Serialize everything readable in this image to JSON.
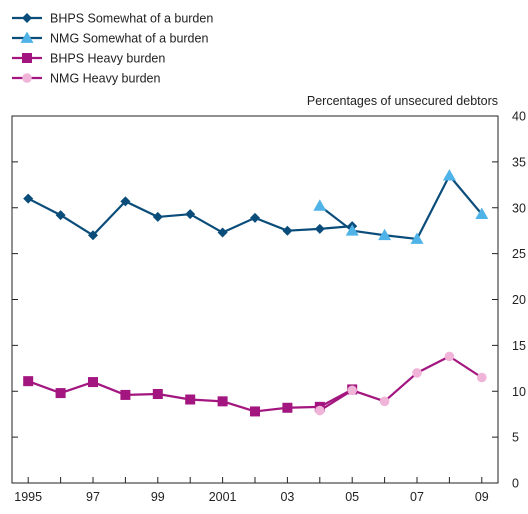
{
  "chart_data": {
    "type": "line",
    "ylabel": "Percentages of unsecured debtors",
    "ylim": [
      0,
      40
    ],
    "xlim": [
      1994.5,
      2009.5
    ],
    "y_ticks": [
      0,
      5,
      10,
      15,
      20,
      25,
      30,
      35,
      40
    ],
    "y_axis_side": "right",
    "x_tick_labels": [
      {
        "x": 1995,
        "label": "1995"
      },
      {
        "x": 1997,
        "label": "97"
      },
      {
        "x": 1999,
        "label": "99"
      },
      {
        "x": 2001,
        "label": "2001"
      },
      {
        "x": 2003,
        "label": "03"
      },
      {
        "x": 2005,
        "label": "05"
      },
      {
        "x": 2007,
        "label": "07"
      },
      {
        "x": 2009,
        "label": "09"
      }
    ],
    "grid": false,
    "legend_position": "top-left",
    "series": [
      {
        "name": "BHPS Somewhat of a burden",
        "color": "#0a4d7a",
        "marker": "diamond",
        "points": [
          [
            1995,
            31.0
          ],
          [
            1996,
            29.2
          ],
          [
            1997,
            27.0
          ],
          [
            1998,
            30.7
          ],
          [
            1999,
            29.0
          ],
          [
            2000,
            29.3
          ],
          [
            2001,
            27.3
          ],
          [
            2002,
            28.9
          ],
          [
            2003,
            27.5
          ],
          [
            2004,
            27.7
          ],
          [
            2005,
            28.0
          ]
        ]
      },
      {
        "name": "NMG Somewhat of a burden",
        "color": "#0a4d7a",
        "marker_color": "#4fb3e8",
        "marker": "triangle",
        "points": [
          [
            2004,
            30.2
          ],
          [
            2005,
            27.5
          ],
          [
            2006,
            27.0
          ],
          [
            2007,
            26.6
          ],
          [
            2008,
            33.5
          ],
          [
            2009,
            29.3
          ]
        ]
      },
      {
        "name": "BHPS Heavy burden",
        "color": "#a3157f",
        "marker": "square",
        "points": [
          [
            1995,
            11.1
          ],
          [
            1996,
            9.8
          ],
          [
            1997,
            11.0
          ],
          [
            1998,
            9.6
          ],
          [
            1999,
            9.7
          ],
          [
            2000,
            9.1
          ],
          [
            2001,
            8.9
          ],
          [
            2002,
            7.8
          ],
          [
            2003,
            8.2
          ],
          [
            2004,
            8.3
          ],
          [
            2005,
            10.2
          ]
        ]
      },
      {
        "name": "NMG Heavy burden",
        "color": "#a3157f",
        "marker_color": "#f0b4d8",
        "marker": "circle",
        "points": [
          [
            2004,
            7.9
          ],
          [
            2005,
            10.1
          ],
          [
            2006,
            8.9
          ],
          [
            2007,
            12.0
          ],
          [
            2008,
            13.8
          ],
          [
            2009,
            11.5
          ]
        ]
      }
    ]
  }
}
